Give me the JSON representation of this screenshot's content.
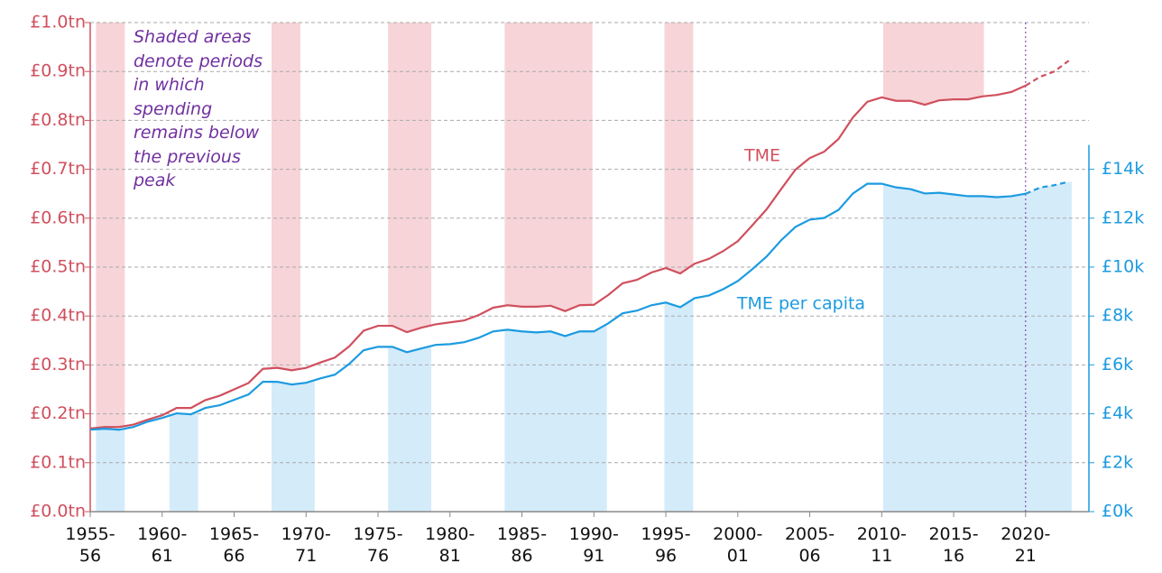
{
  "chart_data": {
    "type": "line",
    "annotation": "Shaded areas denote periods in which spending remains below the previous peak",
    "x": [
      1955,
      1956,
      1957,
      1958,
      1959,
      1960,
      1961,
      1962,
      1963,
      1964,
      1965,
      1966,
      1967,
      1968,
      1969,
      1970,
      1971,
      1972,
      1973,
      1974,
      1975,
      1976,
      1977,
      1978,
      1979,
      1980,
      1981,
      1982,
      1983,
      1984,
      1985,
      1986,
      1987,
      1988,
      1989,
      1990,
      1991,
      1992,
      1993,
      1994,
      1995,
      1996,
      1997,
      1998,
      1999,
      2000,
      2001,
      2002,
      2003,
      2004,
      2005,
      2006,
      2007,
      2008,
      2009,
      2010,
      2011,
      2012,
      2013,
      2014,
      2015,
      2016,
      2017,
      2018,
      2019,
      2020,
      2021,
      2022,
      2023
    ],
    "xlim": [
      1955,
      2024.4
    ],
    "xticks": [
      {
        "value": 1955,
        "label": "1955-56"
      },
      {
        "value": 1960,
        "label": "1960-61"
      },
      {
        "value": 1965,
        "label": "1965-66"
      },
      {
        "value": 1970,
        "label": "1970-71"
      },
      {
        "value": 1975,
        "label": "1975-76"
      },
      {
        "value": 1980,
        "label": "1980-81"
      },
      {
        "value": 1985,
        "label": "1985-86"
      },
      {
        "value": 1990,
        "label": "1990-91"
      },
      {
        "value": 1995,
        "label": "1995-96"
      },
      {
        "value": 2000,
        "label": "2000-01"
      },
      {
        "value": 2005,
        "label": "2005-06"
      },
      {
        "value": 2010,
        "label": "2010-11"
      },
      {
        "value": 2015,
        "label": "2015-16"
      },
      {
        "value": 2020,
        "label": "2020-21"
      }
    ],
    "ylim": [
      0,
      1.0
    ],
    "yticks": [
      {
        "value": 0,
        "label": "£0.0tn"
      },
      {
        "value": 0.1,
        "label": "£0.1tn"
      },
      {
        "value": 0.2,
        "label": "£0.2tn"
      },
      {
        "value": 0.3,
        "label": "£0.3tn"
      },
      {
        "value": 0.4,
        "label": "£0.4tn"
      },
      {
        "value": 0.5,
        "label": "£0.5tn"
      },
      {
        "value": 0.6,
        "label": "£0.6tn"
      },
      {
        "value": 0.7,
        "label": "£0.7tn"
      },
      {
        "value": 0.8,
        "label": "£0.8tn"
      },
      {
        "value": 0.9,
        "label": "£0.9tn"
      },
      {
        "value": 1.0,
        "label": "£1.0tn"
      }
    ],
    "y2lim": [
      0,
      20
    ],
    "y2ticks": [
      {
        "value": 0,
        "label": "£0k"
      },
      {
        "value": 2,
        "label": "£2k"
      },
      {
        "value": 4,
        "label": "£4k"
      },
      {
        "value": 6,
        "label": "£6k"
      },
      {
        "value": 8,
        "label": "£8k"
      },
      {
        "value": 10,
        "label": "£10k"
      },
      {
        "value": 12,
        "label": "£12k"
      },
      {
        "value": 14,
        "label": "£14k"
      }
    ],
    "grid": true,
    "series": [
      {
        "name": "TME",
        "color": "#d0505e",
        "shade_color": "#f6d4d8",
        "values": [
          0.17,
          0.173,
          0.173,
          0.178,
          0.188,
          0.197,
          0.212,
          0.212,
          0.228,
          0.237,
          0.25,
          0.263,
          0.292,
          0.294,
          0.289,
          0.294,
          0.305,
          0.315,
          0.338,
          0.37,
          0.38,
          0.38,
          0.367,
          0.376,
          0.383,
          0.387,
          0.391,
          0.402,
          0.417,
          0.422,
          0.419,
          0.419,
          0.421,
          0.41,
          0.422,
          0.423,
          0.443,
          0.467,
          0.474,
          0.489,
          0.498,
          0.487,
          0.507,
          0.517,
          0.533,
          0.553,
          0.585,
          0.618,
          0.659,
          0.699,
          0.723,
          0.736,
          0.762,
          0.806,
          0.838,
          0.847,
          0.84,
          0.84,
          0.832,
          0.841,
          0.843,
          0.843,
          0.849,
          0.852,
          0.858,
          0.871,
          null,
          null,
          null
        ],
        "forecast_values": [
          null,
          null,
          null,
          null,
          null,
          null,
          null,
          null,
          null,
          null,
          null,
          null,
          null,
          null,
          null,
          null,
          null,
          null,
          null,
          null,
          null,
          null,
          null,
          null,
          null,
          null,
          null,
          null,
          null,
          null,
          null,
          null,
          null,
          null,
          null,
          null,
          null,
          null,
          null,
          null,
          null,
          null,
          null,
          null,
          null,
          null,
          null,
          null,
          null,
          null,
          null,
          null,
          null,
          null,
          null,
          null,
          null,
          null,
          null,
          null,
          null,
          null,
          null,
          null,
          null,
          0.871,
          0.889,
          0.9,
          0.922
        ],
        "shaded": [
          [
            1955.4,
            1957.4
          ],
          [
            1967.6,
            1969.6
          ],
          [
            1975.7,
            1978.7
          ],
          [
            1983.8,
            1989.9
          ],
          [
            1994.9,
            1996.9
          ],
          [
            2010.1,
            2017.1
          ]
        ]
      },
      {
        "name": "TME per capita",
        "color": "#1c9be0",
        "shade_color": "#d4ebfa",
        "axis": "y2",
        "values": [
          3.35,
          3.39,
          3.35,
          3.46,
          3.68,
          3.83,
          4.02,
          3.98,
          4.24,
          4.35,
          4.57,
          4.79,
          5.31,
          5.31,
          5.2,
          5.27,
          5.45,
          5.6,
          6.04,
          6.6,
          6.74,
          6.74,
          6.52,
          6.67,
          6.82,
          6.85,
          6.93,
          7.11,
          7.37,
          7.44,
          7.37,
          7.33,
          7.37,
          7.18,
          7.37,
          7.37,
          7.7,
          8.11,
          8.22,
          8.44,
          8.55,
          8.36,
          8.73,
          8.84,
          9.1,
          9.43,
          9.91,
          10.43,
          11.09,
          11.64,
          11.94,
          12.01,
          12.34,
          13.01,
          13.41,
          13.41,
          13.26,
          13.19,
          13.01,
          13.04,
          12.97,
          12.9,
          12.9,
          12.86,
          12.9,
          13.0,
          null,
          null,
          null
        ],
        "forecast_values": [
          null,
          null,
          null,
          null,
          null,
          null,
          null,
          null,
          null,
          null,
          null,
          null,
          null,
          null,
          null,
          null,
          null,
          null,
          null,
          null,
          null,
          null,
          null,
          null,
          null,
          null,
          null,
          null,
          null,
          null,
          null,
          null,
          null,
          null,
          null,
          null,
          null,
          null,
          null,
          null,
          null,
          null,
          null,
          null,
          null,
          null,
          null,
          null,
          null,
          null,
          null,
          null,
          null,
          null,
          null,
          null,
          null,
          null,
          null,
          null,
          null,
          null,
          null,
          null,
          null,
          13.0,
          13.25,
          13.35,
          13.49
        ],
        "shaded": [
          [
            1955.4,
            1957.4
          ],
          [
            1960.5,
            1962.5
          ],
          [
            1967.6,
            1970.6
          ],
          [
            1975.7,
            1978.7
          ],
          [
            1983.8,
            1990.9
          ],
          [
            1994.9,
            1996.9
          ],
          [
            2010.1,
            2023.2
          ]
        ]
      }
    ]
  }
}
